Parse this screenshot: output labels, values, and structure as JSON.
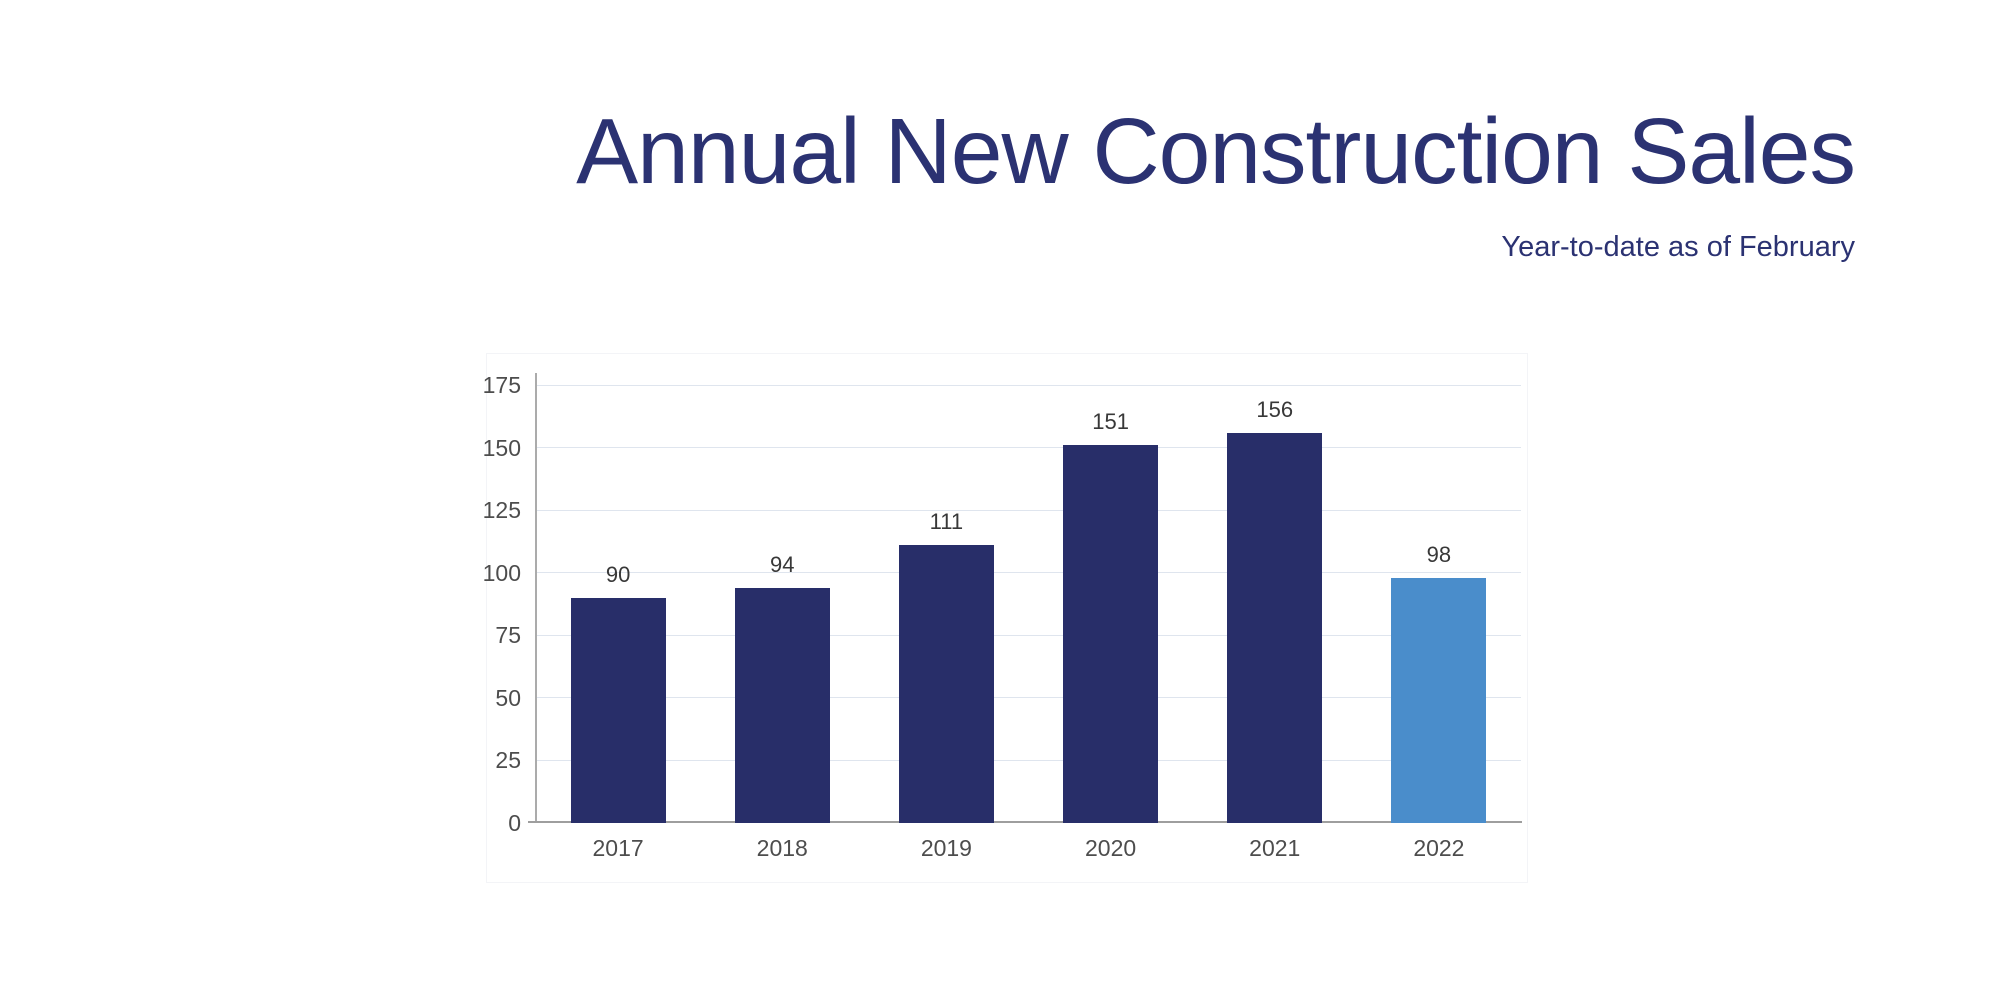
{
  "header": {
    "title": "Annual New Construction Sales",
    "subtitle": "Year-to-date as of February"
  },
  "colors": {
    "title_text": "#2B3272",
    "bar_primary": "#282E69",
    "bar_highlight": "#4A8DCB",
    "gridline": "#DFE5EE",
    "y_axis_line": "#ABABAB",
    "x_axis_line": "#9E9E9E",
    "tick_text": "#4D4D4D",
    "value_label_text": "#383838"
  },
  "chart_data": {
    "type": "bar",
    "title": "Annual New Construction Sales",
    "subtitle": "Year-to-date as of February",
    "categories": [
      "2017",
      "2018",
      "2019",
      "2020",
      "2021",
      "2022"
    ],
    "values": [
      90,
      94,
      111,
      151,
      156,
      98
    ],
    "bar_colors": [
      "#282E69",
      "#282E69",
      "#282E69",
      "#282E69",
      "#282E69",
      "#4A8DCB"
    ],
    "highlighted_category": "2022",
    "xlabel": "",
    "ylabel": "",
    "ylim": [
      0,
      175
    ],
    "yticks": [
      0,
      25,
      50,
      75,
      100,
      125,
      150,
      175
    ],
    "grid": true,
    "legend_position": "none",
    "value_labels": true
  }
}
